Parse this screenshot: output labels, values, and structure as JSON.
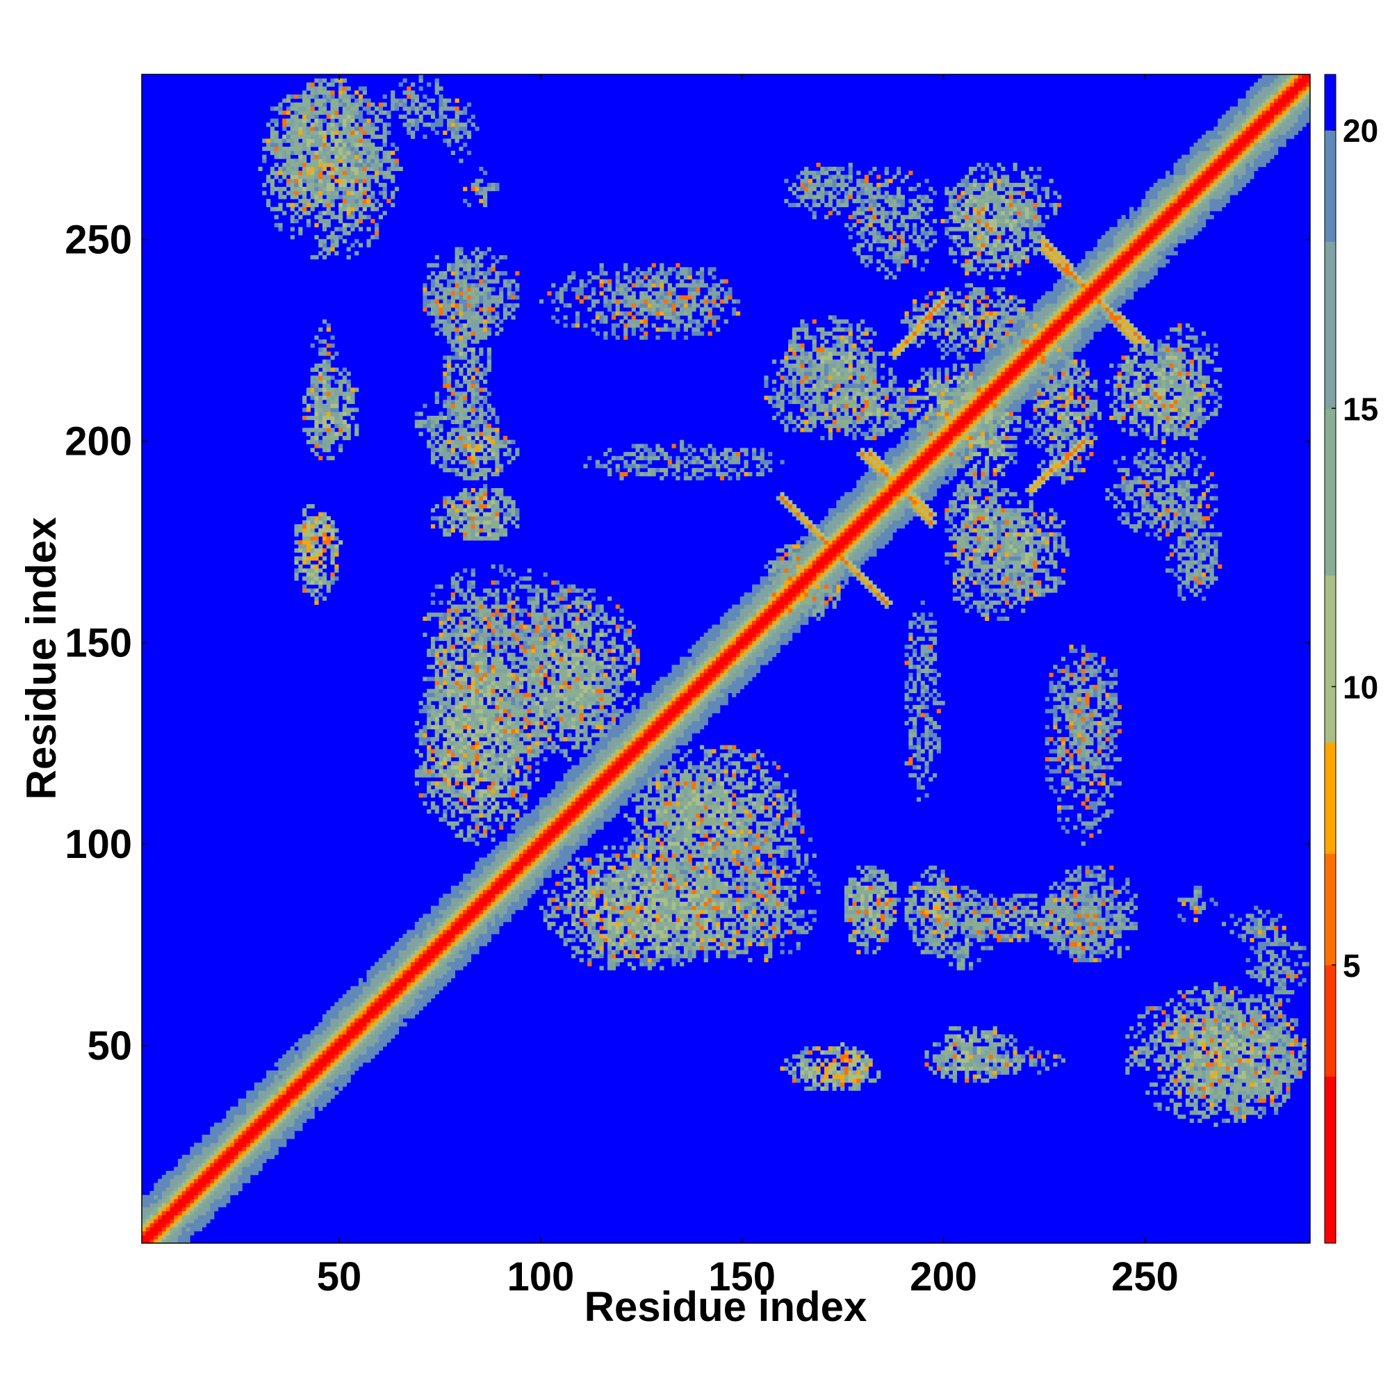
{
  "chart_data": {
    "type": "heatmap",
    "title": "",
    "xlabel": "Residue index",
    "ylabel": "Residue index",
    "xlim": [
      1,
      291
    ],
    "ylim": [
      1,
      291
    ],
    "xticks": [
      50,
      100,
      150,
      200,
      250
    ],
    "yticks": [
      50,
      100,
      150,
      200,
      250
    ],
    "xtick_labels": [
      "50",
      "100",
      "150",
      "200",
      "250"
    ],
    "ytick_labels": [
      "50",
      "100",
      "150",
      "200",
      "250"
    ],
    "colorbar": {
      "min": 0,
      "max": 21,
      "ticks": [
        5,
        10,
        15,
        20
      ],
      "tick_labels": [
        "5",
        "10",
        "15",
        "20"
      ],
      "color_stops": [
        {
          "value": 0,
          "color": "#ff0000"
        },
        {
          "value": 3,
          "color": "#ff3a00"
        },
        {
          "value": 5,
          "color": "#ff7000"
        },
        {
          "value": 7,
          "color": "#ffa500"
        },
        {
          "value": 9,
          "color": "#a9bf86"
        },
        {
          "value": 12,
          "color": "#8aae93"
        },
        {
          "value": 15,
          "color": "#7fa2a2"
        },
        {
          "value": 18,
          "color": "#6088b8"
        },
        {
          "value": 20,
          "color": "#4f7fc4"
        },
        {
          "value": 20.01,
          "color": "#0000ff"
        }
      ]
    },
    "description_of_values": "Pairwise residue distance map (symmetric); values >= 20 shown in saturated blue",
    "diagonal": {
      "width_residues": 6,
      "center_value": 1.5
    },
    "contact_regions": [
      {
        "x": [
          30,
          62
        ],
        "y": [
          255,
          291
        ],
        "value": 14
      },
      {
        "x": [
          75,
          85
        ],
        "y": [
          270,
          285
        ],
        "value": 17
      },
      {
        "x": [
          70,
          90
        ],
        "y": [
          225,
          245
        ],
        "value": 16
      },
      {
        "x": [
          100,
          150
        ],
        "y": [
          225,
          245
        ],
        "value": 17
      },
      {
        "x": [
          42,
          50
        ],
        "y": [
          195,
          230
        ],
        "value": 16
      },
      {
        "x": [
          40,
          50
        ],
        "y": [
          168,
          182
        ],
        "value": 9
      },
      {
        "x": [
          68,
          90
        ],
        "y": [
          192,
          215
        ],
        "value": 15
      },
      {
        "x": [
          72,
          95
        ],
        "y": [
          175,
          188
        ],
        "value": 13
      },
      {
        "x": [
          110,
          160
        ],
        "y": [
          190,
          200
        ],
        "value": 16
      },
      {
        "x": [
          70,
          95
        ],
        "y": [
          110,
          160
        ],
        "value": 13
      },
      {
        "x": [
          95,
          125
        ],
        "y": [
          125,
          165
        ],
        "value": 14
      },
      {
        "x": [
          100,
          145
        ],
        "y": [
          68,
          100
        ],
        "value": 13
      },
      {
        "x": [
          120,
          155
        ],
        "y": [
          85,
          120
        ],
        "value": 14
      },
      {
        "x": [
          140,
          170
        ],
        "y": [
          70,
          110
        ],
        "value": 16
      },
      {
        "x": [
          155,
          175
        ],
        "y": [
          155,
          175
        ],
        "value": 15
      },
      {
        "x": [
          155,
          185
        ],
        "y": [
          200,
          225
        ],
        "value": 15
      },
      {
        "x": [
          160,
          185
        ],
        "y": [
          255,
          270
        ],
        "value": 16
      },
      {
        "x": [
          170,
          192
        ],
        "y": [
          200,
          220
        ],
        "value": 14
      },
      {
        "x": [
          200,
          230
        ],
        "y": [
          250,
          270
        ],
        "value": 14
      },
      {
        "x": [
          190,
          225
        ],
        "y": [
          220,
          240
        ],
        "value": 15
      },
      {
        "x": [
          200,
          220
        ],
        "y": [
          190,
          215
        ],
        "value": 13
      },
      {
        "x": [
          212,
          232
        ],
        "y": [
          160,
          185
        ],
        "value": 14
      },
      {
        "x": [
          240,
          265
        ],
        "y": [
          200,
          225
        ],
        "value": 13
      },
      {
        "x": [
          240,
          270
        ],
        "y": [
          175,
          200
        ],
        "value": 16
      },
      {
        "x": [
          225,
          245
        ],
        "y": [
          115,
          150
        ],
        "value": 17
      },
      {
        "x": [
          175,
          190
        ],
        "y": [
          75,
          95
        ],
        "value": 14
      },
      {
        "x": [
          190,
          205
        ],
        "y": [
          75,
          95
        ],
        "value": 14
      },
      {
        "x": [
          200,
          240
        ],
        "y": [
          75,
          88
        ],
        "value": 15
      },
      {
        "x": [
          225,
          250
        ],
        "y": [
          70,
          95
        ],
        "value": 16
      },
      {
        "x": [
          160,
          185
        ],
        "y": [
          38,
          50
        ],
        "value": 12
      },
      {
        "x": [
          195,
          220
        ],
        "y": [
          40,
          55
        ],
        "value": 13
      },
      {
        "x": [
          245,
          291
        ],
        "y": [
          30,
          65
        ],
        "value": 14
      },
      {
        "x": [
          275,
          291
        ],
        "y": [
          60,
          80
        ],
        "value": 17
      },
      {
        "x": [
          258,
          268
        ],
        "y": [
          80,
          90
        ],
        "value": 17
      }
    ],
    "antiparallel_strands": [
      {
        "from": [
          160,
          186
        ],
        "to": [
          186,
          160
        ],
        "value": 6
      },
      {
        "from": [
          180,
          197
        ],
        "to": [
          197,
          182
        ],
        "value": 6
      },
      {
        "from": [
          225,
          250
        ],
        "to": [
          248,
          225
        ],
        "value": 6
      },
      {
        "from": [
          188,
          222
        ],
        "to": [
          200,
          235
        ],
        "value": 6
      }
    ]
  }
}
